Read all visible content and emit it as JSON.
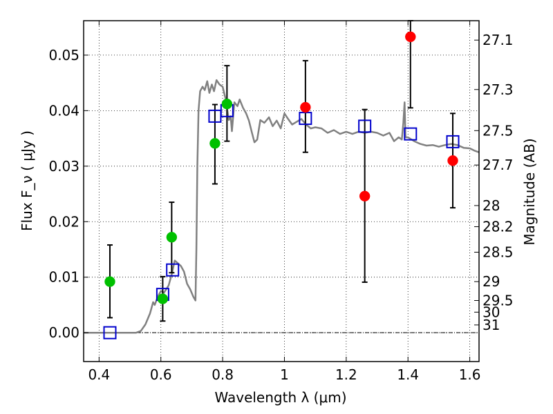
{
  "chart_data": {
    "type": "scatter",
    "xlabel": "Wavelength  λ (μm)",
    "ylabel": "Flux  F_ν  ( μJy )",
    "ylabel_right": "Magnitude (AB)",
    "xlim": [
      0.35,
      1.63
    ],
    "ylim": [
      -0.0052,
      0.0562
    ],
    "x_ticks": [
      0.4,
      0.6,
      0.8,
      1.0,
      1.2,
      1.4,
      1.6
    ],
    "x_tick_labels": [
      "0.4",
      "0.6",
      "0.8",
      "1",
      "1.2",
      "1.4",
      "1.6"
    ],
    "y_ticks": [
      0.0,
      0.01,
      0.02,
      0.03,
      0.04,
      0.05
    ],
    "y_tick_labels": [
      "0.00",
      "0.01",
      "0.02",
      "0.03",
      "0.04",
      "0.05"
    ],
    "magnitude_ticks": [
      {
        "label": "27.1",
        "flux": 0.0527
      },
      {
        "label": "27.3",
        "flux": 0.0438
      },
      {
        "label": "27.5",
        "flux": 0.0364
      },
      {
        "label": "27.7",
        "flux": 0.0302
      },
      {
        "label": "28",
        "flux": 0.0229
      },
      {
        "label": "28.2",
        "flux": 0.0191
      },
      {
        "label": "28.5",
        "flux": 0.0145
      },
      {
        "label": "29",
        "flux": 0.0092
      },
      {
        "label": "29.5",
        "flux": 0.0058
      },
      {
        "label": "30",
        "flux": 0.0037
      },
      {
        "label": "31",
        "flux": 0.0014
      }
    ],
    "grid": true,
    "series": [
      {
        "style": "green-circle",
        "color": "#00c000",
        "points": [
          {
            "x": 0.435,
            "y": 0.0092,
            "yerr_low": 0.0027,
            "yerr_high": 0.0158
          },
          {
            "x": 0.606,
            "y": 0.0061,
            "yerr_low": 0.0021,
            "yerr_high": 0.0101
          },
          {
            "x": 0.635,
            "y": 0.0172,
            "yerr_low": 0.0108,
            "yerr_high": 0.0235
          },
          {
            "x": 0.775,
            "y": 0.0341,
            "yerr_low": 0.0268,
            "yerr_high": 0.0411
          },
          {
            "x": 0.814,
            "y": 0.0412,
            "yerr_low": 0.0345,
            "yerr_high": 0.0481
          }
        ]
      },
      {
        "style": "red-circle",
        "color": "#ff0000",
        "points": [
          {
            "x": 1.068,
            "y": 0.0406,
            "yerr_low": 0.0325,
            "yerr_high": 0.049
          },
          {
            "x": 1.26,
            "y": 0.0246,
            "yerr_low": 0.0091,
            "yerr_high": 0.0402
          },
          {
            "x": 1.408,
            "y": 0.0533,
            "yerr_low": 0.0405,
            "yerr_high": 0.0562
          },
          {
            "x": 1.545,
            "y": 0.031,
            "yerr_low": 0.0225,
            "yerr_high": 0.0395
          }
        ]
      },
      {
        "style": "blue-open-square",
        "color": "#0000cc",
        "points": [
          {
            "x": 0.435,
            "y": 0.0
          },
          {
            "x": 0.606,
            "y": 0.0069
          },
          {
            "x": 0.638,
            "y": 0.0113
          },
          {
            "x": 0.775,
            "y": 0.039
          },
          {
            "x": 0.814,
            "y": 0.04
          },
          {
            "x": 1.068,
            "y": 0.0386
          },
          {
            "x": 1.26,
            "y": 0.0372
          },
          {
            "x": 1.408,
            "y": 0.0358
          },
          {
            "x": 1.545,
            "y": 0.0344
          }
        ]
      },
      {
        "style": "gray-line",
        "color": "#808080",
        "points": [
          [
            0.35,
            0.0
          ],
          [
            0.52,
            0.0
          ],
          [
            0.535,
            0.0003
          ],
          [
            0.55,
            0.0015
          ],
          [
            0.565,
            0.0035
          ],
          [
            0.575,
            0.0055
          ],
          [
            0.58,
            0.005
          ],
          [
            0.59,
            0.0065
          ],
          [
            0.6,
            0.0075
          ],
          [
            0.61,
            0.0072
          ],
          [
            0.625,
            0.0085
          ],
          [
            0.635,
            0.0105
          ],
          [
            0.645,
            0.013
          ],
          [
            0.655,
            0.0125
          ],
          [
            0.665,
            0.012
          ],
          [
            0.675,
            0.011
          ],
          [
            0.685,
            0.0088
          ],
          [
            0.695,
            0.0078
          ],
          [
            0.705,
            0.0065
          ],
          [
            0.712,
            0.0058
          ],
          [
            0.715,
            0.015
          ],
          [
            0.718,
            0.03
          ],
          [
            0.722,
            0.04
          ],
          [
            0.727,
            0.0435
          ],
          [
            0.735,
            0.0443
          ],
          [
            0.742,
            0.0437
          ],
          [
            0.75,
            0.0453
          ],
          [
            0.757,
            0.0432
          ],
          [
            0.765,
            0.0447
          ],
          [
            0.772,
            0.0435
          ],
          [
            0.78,
            0.0455
          ],
          [
            0.79,
            0.0447
          ],
          [
            0.8,
            0.0443
          ],
          [
            0.81,
            0.042
          ],
          [
            0.82,
            0.0383
          ],
          [
            0.826,
            0.039
          ],
          [
            0.83,
            0.0363
          ],
          [
            0.838,
            0.0415
          ],
          [
            0.848,
            0.0408
          ],
          [
            0.855,
            0.042
          ],
          [
            0.866,
            0.0405
          ],
          [
            0.876,
            0.0395
          ],
          [
            0.885,
            0.0382
          ],
          [
            0.895,
            0.036
          ],
          [
            0.903,
            0.0343
          ],
          [
            0.912,
            0.0348
          ],
          [
            0.922,
            0.0383
          ],
          [
            0.935,
            0.0378
          ],
          [
            0.95,
            0.0388
          ],
          [
            0.962,
            0.0372
          ],
          [
            0.975,
            0.0382
          ],
          [
            0.988,
            0.0368
          ],
          [
            1.0,
            0.0395
          ],
          [
            1.012,
            0.0385
          ],
          [
            1.025,
            0.0375
          ],
          [
            1.04,
            0.038
          ],
          [
            1.055,
            0.0385
          ],
          [
            1.07,
            0.0375
          ],
          [
            1.085,
            0.0368
          ],
          [
            1.1,
            0.037
          ],
          [
            1.12,
            0.0368
          ],
          [
            1.14,
            0.036
          ],
          [
            1.16,
            0.0365
          ],
          [
            1.18,
            0.0358
          ],
          [
            1.2,
            0.0362
          ],
          [
            1.22,
            0.0358
          ],
          [
            1.24,
            0.0362
          ],
          [
            1.26,
            0.036
          ],
          [
            1.28,
            0.0362
          ],
          [
            1.3,
            0.036
          ],
          [
            1.32,
            0.0355
          ],
          [
            1.34,
            0.036
          ],
          [
            1.355,
            0.0345
          ],
          [
            1.37,
            0.0352
          ],
          [
            1.38,
            0.0348
          ],
          [
            1.385,
            0.0378
          ],
          [
            1.389,
            0.0415
          ],
          [
            1.392,
            0.0352
          ],
          [
            1.4,
            0.0352
          ],
          [
            1.42,
            0.0345
          ],
          [
            1.44,
            0.034
          ],
          [
            1.46,
            0.0337
          ],
          [
            1.48,
            0.0338
          ],
          [
            1.5,
            0.0335
          ],
          [
            1.52,
            0.0338
          ],
          [
            1.54,
            0.034
          ],
          [
            1.56,
            0.0338
          ],
          [
            1.58,
            0.0333
          ],
          [
            1.6,
            0.0332
          ],
          [
            1.615,
            0.0328
          ],
          [
            1.63,
            0.0325
          ]
        ]
      }
    ]
  }
}
